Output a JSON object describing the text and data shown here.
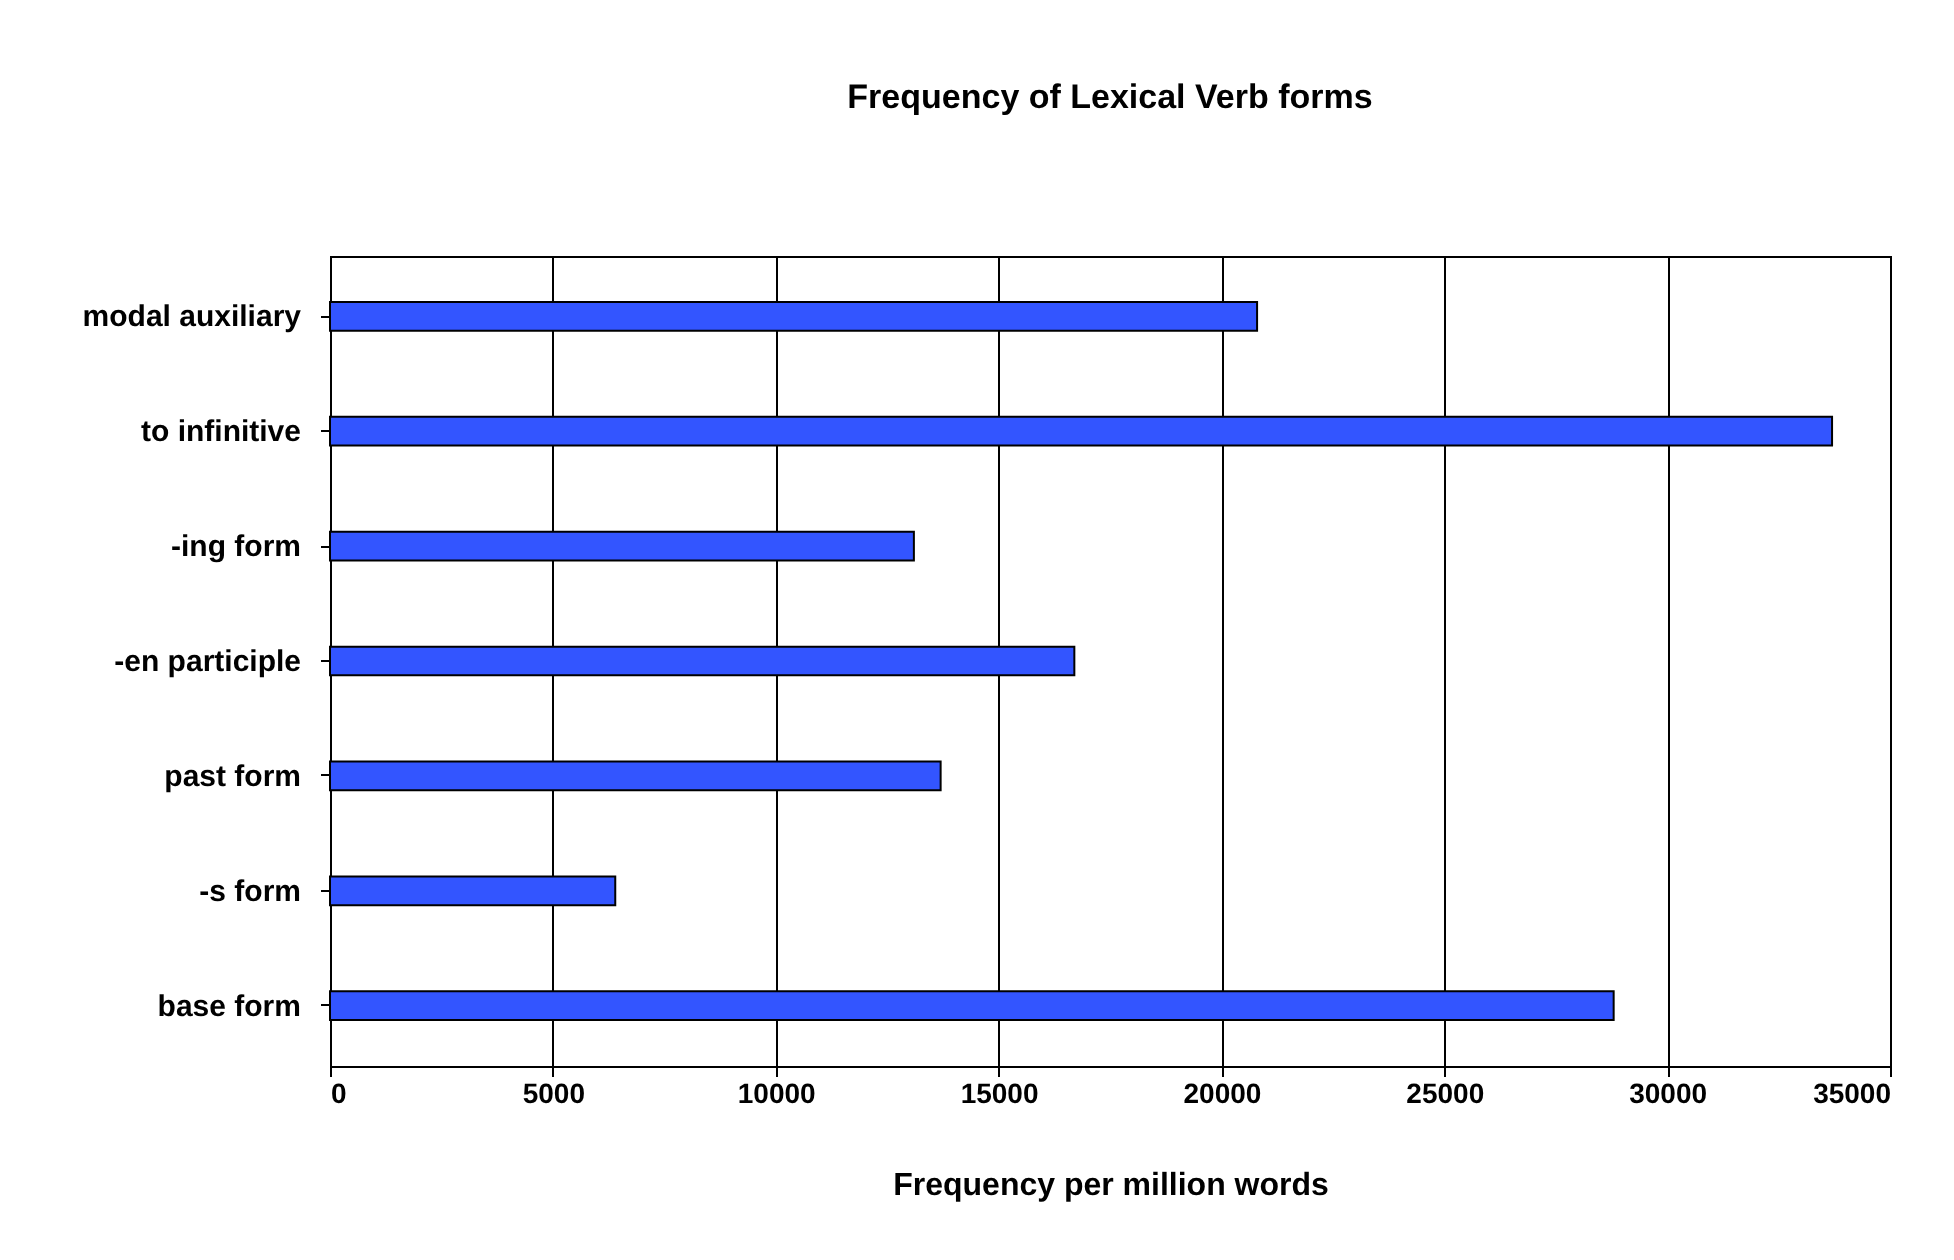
{
  "chart_data": {
    "type": "bar",
    "orientation": "horizontal",
    "title": "Frequency of Lexical Verb forms",
    "xlabel": "Frequency per million words",
    "categories": [
      "modal auxiliary",
      "to infinitive",
      "-ing form",
      "-en participle",
      "past form",
      "-s form",
      "base form"
    ],
    "values": [
      20800,
      33700,
      13100,
      16700,
      13700,
      6400,
      28800
    ],
    "color": "#3355ff",
    "xlim": [
      0,
      35000
    ],
    "xticks": [
      0,
      5000,
      10000,
      15000,
      20000,
      25000,
      30000,
      35000
    ],
    "grid": "x"
  }
}
